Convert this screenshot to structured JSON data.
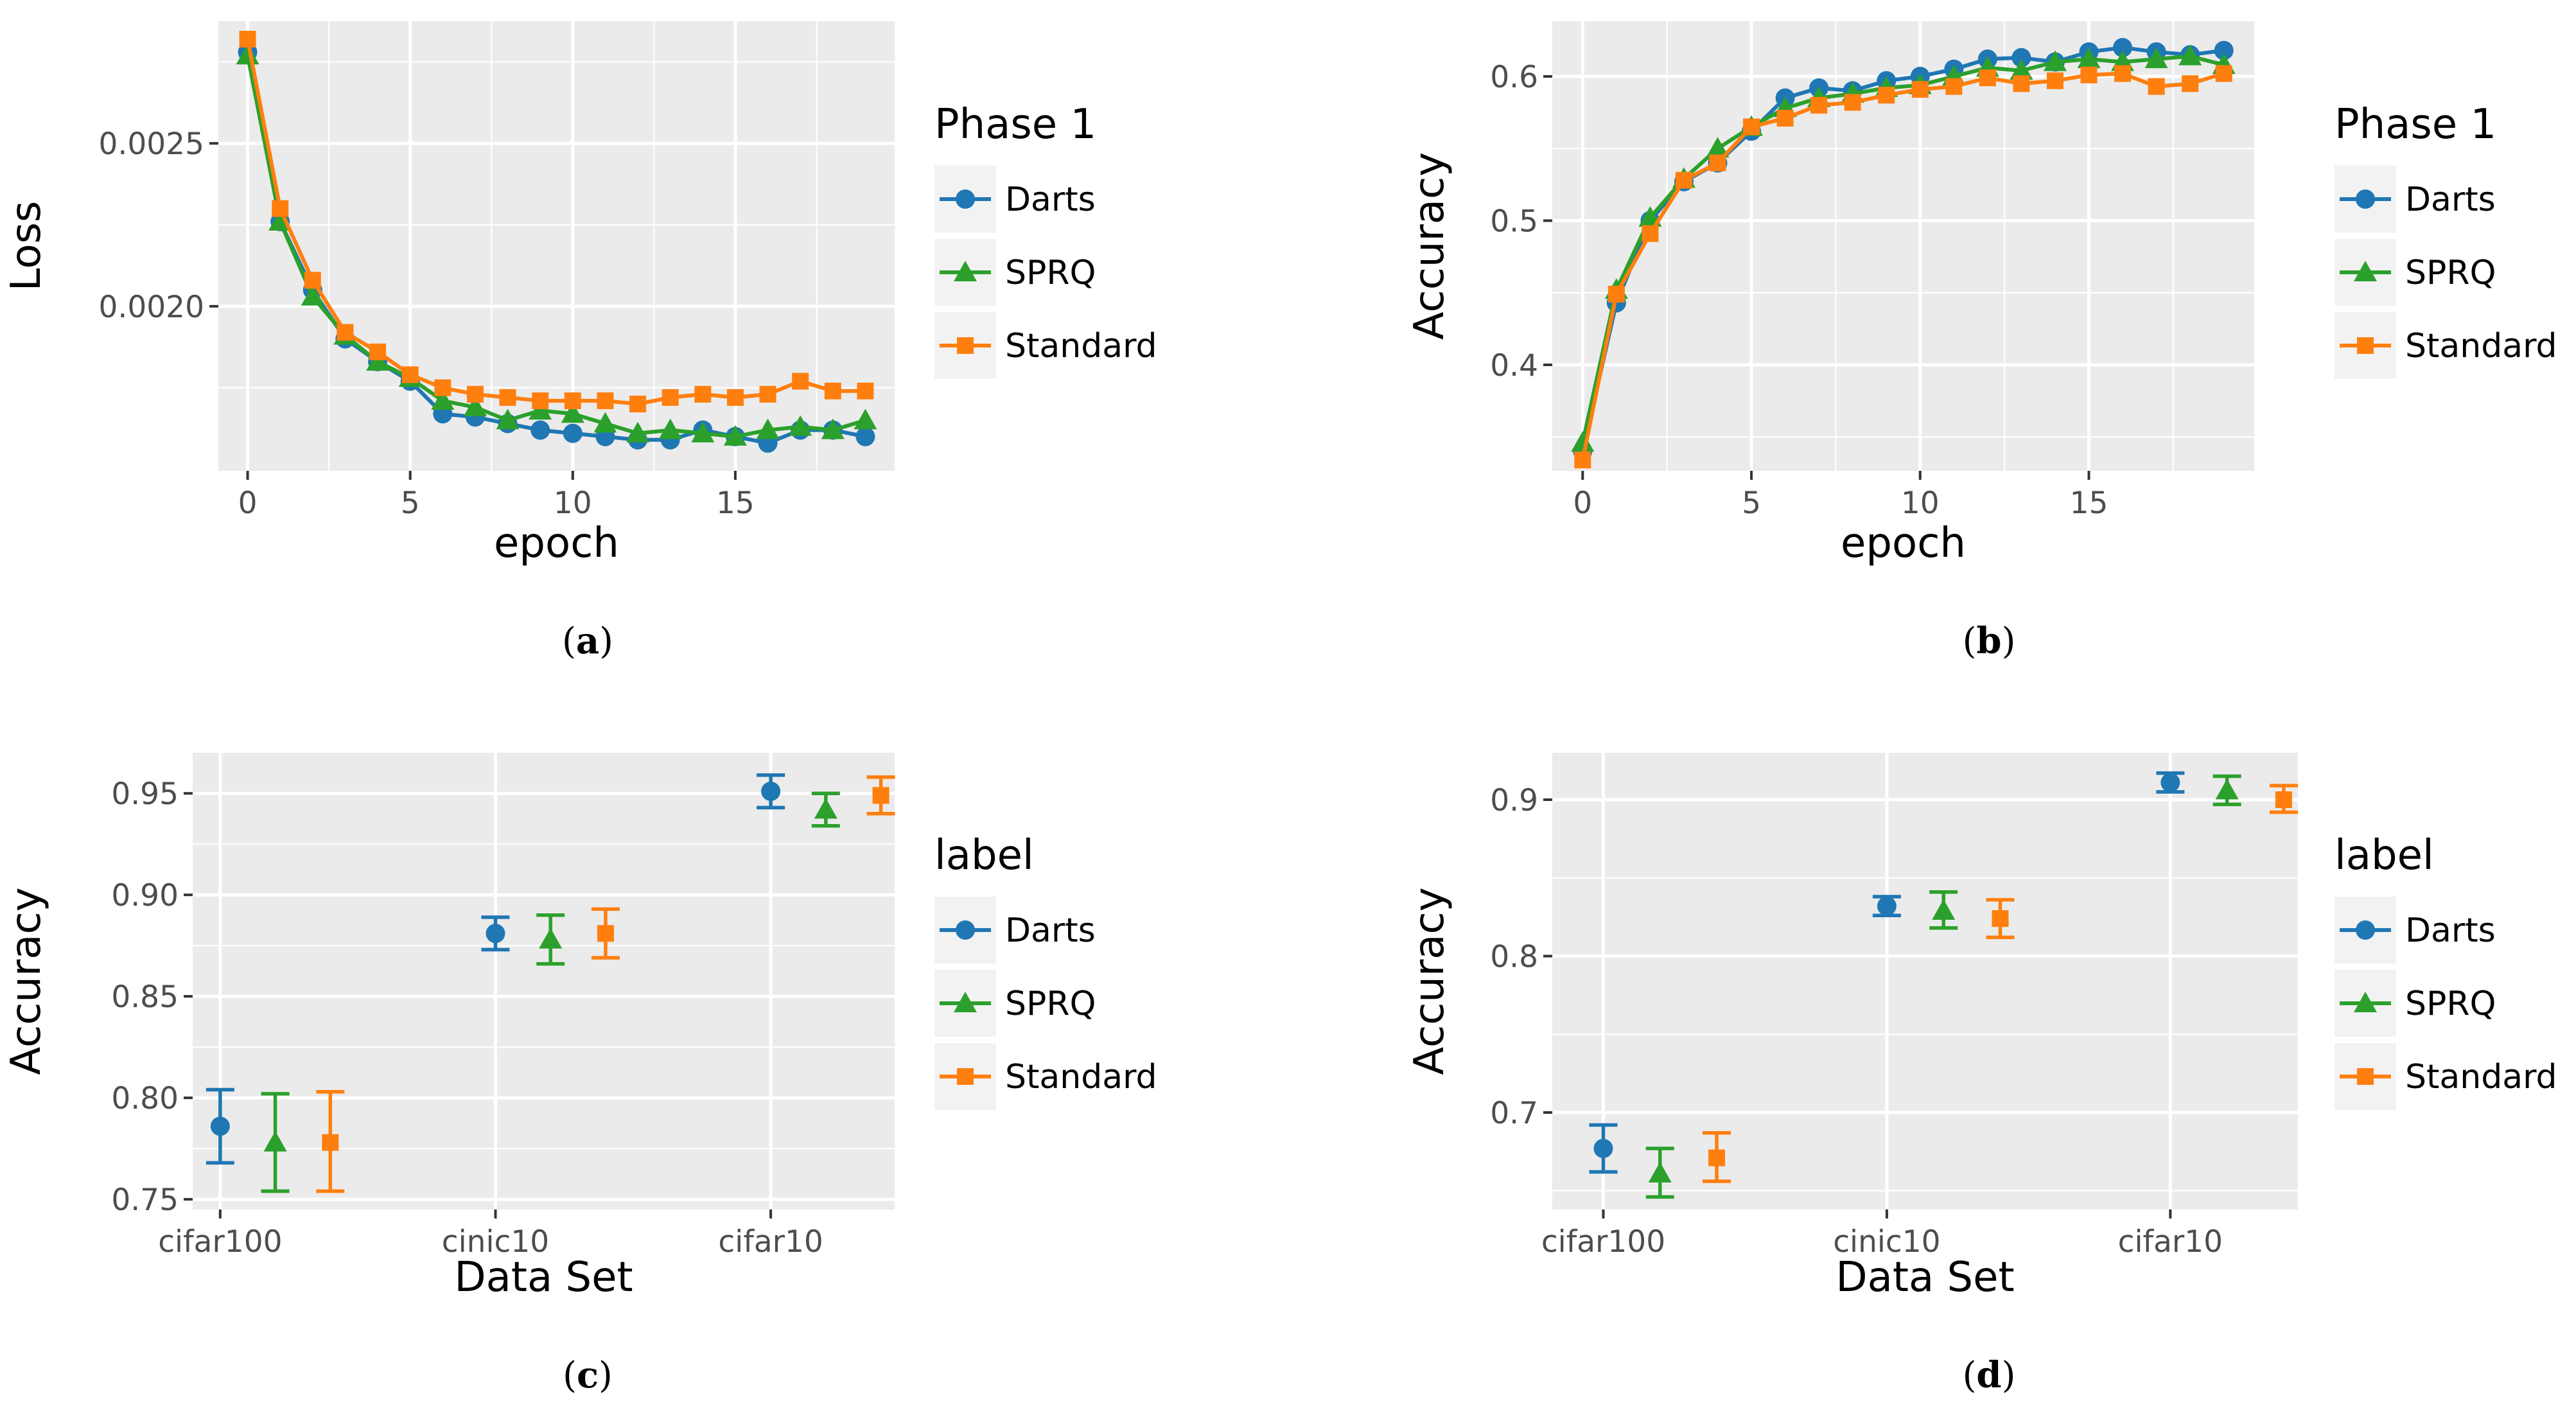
{
  "colors": {
    "Darts": "#1f77b4",
    "SPRQ": "#2ca02c",
    "Standard": "#ff7f0e"
  },
  "chart_data": [
    {
      "id": "a",
      "type": "line",
      "caption_letter": "a",
      "xlabel": "epoch",
      "ylabel": "Loss",
      "xlim": [
        -0.9,
        19.9
      ],
      "ylim": [
        0.001495,
        0.002875
      ],
      "xticks": [
        0,
        5,
        10,
        15
      ],
      "xtick_labels": [
        "0",
        "5",
        "10",
        "15"
      ],
      "yticks": [
        0.002,
        0.0025
      ],
      "ytick_labels": [
        "0.0020",
        "0.0025"
      ],
      "legend": {
        "title": "Phase 1",
        "position": "right",
        "entries": [
          "Darts",
          "SPRQ",
          "Standard"
        ]
      },
      "series": [
        {
          "name": "Darts",
          "marker": "circle",
          "x": [
            0,
            1,
            2,
            3,
            4,
            5,
            6,
            7,
            8,
            9,
            10,
            11,
            12,
            13,
            14,
            15,
            16,
            17,
            18,
            19
          ],
          "y": [
            0.00278,
            0.00226,
            0.00205,
            0.0019,
            0.00183,
            0.00177,
            0.00167,
            0.00166,
            0.00164,
            0.00162,
            0.00161,
            0.0016,
            0.00159,
            0.00159,
            0.00162,
            0.0016,
            0.00158,
            0.00162,
            0.00162,
            0.0016
          ]
        },
        {
          "name": "SPRQ",
          "marker": "triangle",
          "x": [
            0,
            1,
            2,
            3,
            4,
            5,
            6,
            7,
            8,
            9,
            10,
            11,
            12,
            13,
            14,
            15,
            16,
            17,
            18,
            19
          ],
          "y": [
            0.00277,
            0.00226,
            0.00203,
            0.00191,
            0.00183,
            0.00178,
            0.00171,
            0.00169,
            0.00165,
            0.00168,
            0.00167,
            0.00164,
            0.00161,
            0.00162,
            0.00161,
            0.0016,
            0.00162,
            0.00163,
            0.00162,
            0.00165
          ]
        },
        {
          "name": "Standard",
          "marker": "square",
          "x": [
            0,
            1,
            2,
            3,
            4,
            5,
            6,
            7,
            8,
            9,
            10,
            11,
            12,
            13,
            14,
            15,
            16,
            17,
            18,
            19
          ],
          "y": [
            0.00282,
            0.0023,
            0.00208,
            0.00192,
            0.00186,
            0.00179,
            0.00175,
            0.00173,
            0.00172,
            0.00171,
            0.00171,
            0.00171,
            0.0017,
            0.00172,
            0.00173,
            0.00172,
            0.00173,
            0.00177,
            0.00174,
            0.00174
          ]
        }
      ]
    },
    {
      "id": "b",
      "type": "line",
      "caption_letter": "b",
      "xlabel": "epoch",
      "ylabel": "Accuracy",
      "xlim": [
        -0.9,
        19.9
      ],
      "ylim": [
        0.3265,
        0.6383
      ],
      "xticks": [
        0,
        5,
        10,
        15
      ],
      "xtick_labels": [
        "0",
        "5",
        "10",
        "15"
      ],
      "yticks": [
        0.4,
        0.5,
        0.6
      ],
      "ytick_labels": [
        "0.4",
        "0.5",
        "0.6"
      ],
      "legend": {
        "title": "Phase 1",
        "position": "right",
        "entries": [
          "Darts",
          "SPRQ",
          "Standard"
        ]
      },
      "series": [
        {
          "name": "Darts",
          "marker": "circle",
          "x": [
            0,
            1,
            2,
            3,
            4,
            5,
            6,
            7,
            8,
            9,
            10,
            11,
            12,
            13,
            14,
            15,
            16,
            17,
            18,
            19
          ],
          "y": [
            0.34,
            0.443,
            0.5,
            0.527,
            0.54,
            0.562,
            0.585,
            0.592,
            0.59,
            0.597,
            0.6,
            0.605,
            0.612,
            0.613,
            0.61,
            0.617,
            0.62,
            0.617,
            0.615,
            0.618
          ]
        },
        {
          "name": "SPRQ",
          "marker": "triangle",
          "x": [
            0,
            1,
            2,
            3,
            4,
            5,
            6,
            7,
            8,
            9,
            10,
            11,
            12,
            13,
            14,
            15,
            16,
            17,
            18,
            19
          ],
          "y": [
            0.346,
            0.452,
            0.502,
            0.529,
            0.55,
            0.565,
            0.578,
            0.585,
            0.588,
            0.592,
            0.594,
            0.6,
            0.606,
            0.604,
            0.61,
            0.612,
            0.61,
            0.612,
            0.614,
            0.608
          ]
        },
        {
          "name": "Standard",
          "marker": "square",
          "x": [
            0,
            1,
            2,
            3,
            4,
            5,
            6,
            7,
            8,
            9,
            10,
            11,
            12,
            13,
            14,
            15,
            16,
            17,
            18,
            19
          ],
          "y": [
            0.334,
            0.449,
            0.491,
            0.528,
            0.54,
            0.565,
            0.571,
            0.58,
            0.582,
            0.587,
            0.591,
            0.593,
            0.599,
            0.595,
            0.597,
            0.601,
            0.602,
            0.593,
            0.595,
            0.602
          ]
        }
      ]
    },
    {
      "id": "c",
      "type": "scatter",
      "caption_letter": "c",
      "xlabel": "Data Set",
      "ylabel": "Accuracy",
      "categories": [
        "cifar100",
        "cinic10",
        "cifar10"
      ],
      "xlim": [
        0.9,
        3.45
      ],
      "ylim": [
        0.745,
        0.97
      ],
      "yticks": [
        0.75,
        0.8,
        0.85,
        0.9,
        0.95
      ],
      "ytick_labels": [
        "0.75",
        "0.80",
        "0.85",
        "0.90",
        "0.95"
      ],
      "legend": {
        "title": "label",
        "position": "right",
        "entries": [
          "Darts",
          "SPRQ",
          "Standard"
        ]
      },
      "series": [
        {
          "name": "Darts",
          "marker": "circle",
          "x": [
            1,
            2,
            3
          ],
          "y": [
            0.786,
            0.881,
            0.951
          ],
          "ymin": [
            0.768,
            0.873,
            0.943
          ],
          "ymax": [
            0.804,
            0.889,
            0.959
          ]
        },
        {
          "name": "SPRQ",
          "marker": "triangle",
          "x": [
            1.2,
            2.2,
            3.2
          ],
          "y": [
            0.778,
            0.878,
            0.942
          ],
          "ymin": [
            0.754,
            0.866,
            0.934
          ],
          "ymax": [
            0.802,
            0.89,
            0.95
          ]
        },
        {
          "name": "Standard",
          "marker": "square",
          "x": [
            1.4,
            2.4,
            3.4
          ],
          "y": [
            0.778,
            0.881,
            0.949
          ],
          "ymin": [
            0.754,
            0.869,
            0.94
          ],
          "ymax": [
            0.803,
            0.893,
            0.958
          ]
        }
      ]
    },
    {
      "id": "d",
      "type": "scatter",
      "caption_letter": "d",
      "xlabel": "Data Set",
      "ylabel": "Accuracy",
      "categories": [
        "cifar100",
        "cinic10",
        "cifar10"
      ],
      "xlim": [
        0.82,
        3.45
      ],
      "ylim": [
        0.638,
        0.93
      ],
      "yticks": [
        0.7,
        0.8,
        0.9
      ],
      "ytick_labels": [
        "0.7",
        "0.8",
        "0.9"
      ],
      "legend": {
        "title": "label",
        "position": "right",
        "entries": [
          "Darts",
          "SPRQ",
          "Standard"
        ]
      },
      "series": [
        {
          "name": "Darts",
          "marker": "circle",
          "x": [
            1,
            2,
            3
          ],
          "y": [
            0.677,
            0.832,
            0.911
          ],
          "ymin": [
            0.662,
            0.826,
            0.905
          ],
          "ymax": [
            0.692,
            0.838,
            0.917
          ]
        },
        {
          "name": "SPRQ",
          "marker": "triangle",
          "x": [
            1.2,
            2.2,
            3.2
          ],
          "y": [
            0.661,
            0.829,
            0.906
          ],
          "ymin": [
            0.646,
            0.818,
            0.897
          ],
          "ymax": [
            0.677,
            0.841,
            0.915
          ]
        },
        {
          "name": "Standard",
          "marker": "square",
          "x": [
            1.4,
            2.4,
            3.4
          ],
          "y": [
            0.671,
            0.824,
            0.9
          ],
          "ymin": [
            0.656,
            0.812,
            0.892
          ],
          "ymax": [
            0.687,
            0.836,
            0.909
          ]
        }
      ]
    }
  ]
}
